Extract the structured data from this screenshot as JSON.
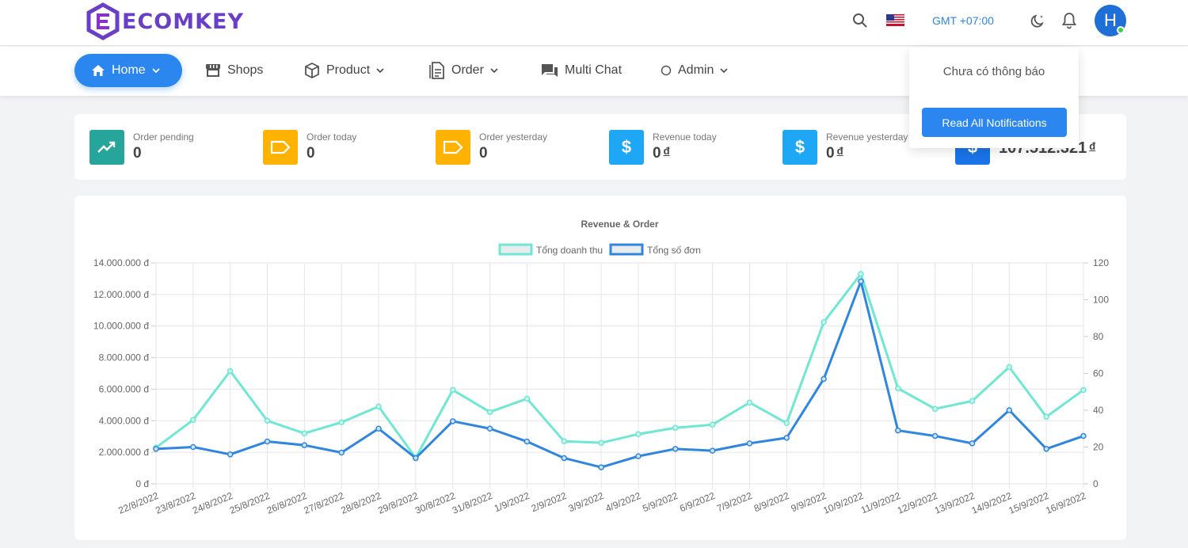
{
  "app": {
    "logo_text": "ECOMKEY"
  },
  "topbar": {
    "timezone": "GMT +07:00",
    "avatar_letter": "H",
    "language_flag": "us-flag"
  },
  "nav": {
    "home": "Home",
    "shops": "Shops",
    "product": "Product",
    "order": "Order",
    "multi_chat": "Multi Chat",
    "admin": "Admin"
  },
  "notifications": {
    "empty_text": "Chưa có thông báo",
    "read_all_label": "Read All Notifications"
  },
  "stats": [
    {
      "label": "Order pending",
      "value": "0",
      "currency": "",
      "icon": "trending-up-icon",
      "color": "#26a69a"
    },
    {
      "label": "Order today",
      "value": "0",
      "currency": "",
      "icon": "tag-icon",
      "color": "#ffb300"
    },
    {
      "label": "Order yesterday",
      "value": "0",
      "currency": "",
      "icon": "tag-icon",
      "color": "#ffb300"
    },
    {
      "label": "Revenue today",
      "value": "0",
      "currency": "đ",
      "icon": "dollar-icon",
      "color": "#1ea7f5"
    },
    {
      "label": "Revenue yesterday",
      "value": "0",
      "currency": "đ",
      "icon": "dollar-icon",
      "color": "#1ea7f5"
    },
    {
      "label": "",
      "value": "107.512.321",
      "currency": "đ",
      "icon": "dollar-icon",
      "color": "#1a73e8"
    }
  ],
  "chart_data": {
    "type": "line",
    "title": "Revenue & Order",
    "categories": [
      "22/8/2022",
      "23/8/2022",
      "24/8/2022",
      "25/8/2022",
      "26/8/2022",
      "27/8/2022",
      "28/8/2022",
      "29/8/2022",
      "30/8/2022",
      "31/8/2022",
      "1/9/2022",
      "2/9/2022",
      "3/9/2022",
      "4/9/2022",
      "5/9/2022",
      "6/9/2022",
      "7/9/2022",
      "8/9/2022",
      "9/9/2022",
      "10/9/2022",
      "11/9/2022",
      "12/9/2022",
      "13/9/2022",
      "14/9/2022",
      "15/9/2022",
      "16/9/2022"
    ],
    "series": [
      {
        "name": "Tổng doanh thu",
        "axis": "left",
        "color": "#6ee7d3",
        "values": [
          2300000,
          4050000,
          7150000,
          4000000,
          3200000,
          3900000,
          4900000,
          1650000,
          5950000,
          4550000,
          5400000,
          2700000,
          2600000,
          3150000,
          3550000,
          3750000,
          5150000,
          3850000,
          10250000,
          13300000,
          6050000,
          4750000,
          5250000,
          7400000,
          4250000,
          5950000
        ]
      },
      {
        "name": "Tổng số đơn",
        "axis": "right",
        "color": "#2f86e0",
        "values": [
          19,
          20,
          16,
          23,
          21,
          17,
          30,
          14,
          34,
          30,
          23,
          14,
          9,
          15,
          19,
          18,
          22,
          25,
          57,
          110,
          29,
          26,
          22,
          40,
          19,
          26
        ]
      }
    ],
    "y_left": {
      "min": 0,
      "max": 14000000,
      "step": 2000000,
      "tick_labels": [
        "0 đ",
        "2.000.000 đ",
        "4.000.000 đ",
        "6.000.000 đ",
        "8.000.000 đ",
        "10.000.000 đ",
        "12.000.000 đ",
        "14.000.000 đ"
      ]
    },
    "y_right": {
      "min": 0,
      "max": 120,
      "step": 20,
      "tick_labels": [
        "0",
        "20",
        "40",
        "60",
        "80",
        "100",
        "120"
      ]
    },
    "grid": true,
    "legend": "top-center"
  }
}
